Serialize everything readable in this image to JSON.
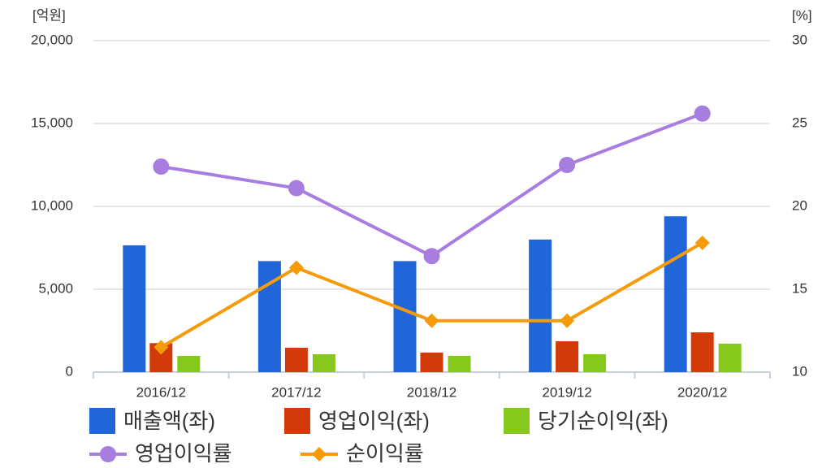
{
  "chart_data": {
    "type": "bar",
    "y_unit": "[억원]",
    "y2_unit": "[%]",
    "categories": [
      "2016/12",
      "2017/12",
      "2018/12",
      "2019/12",
      "2020/12"
    ],
    "ylim": [
      0,
      20000
    ],
    "yticks": [
      0,
      {
        "value": 5000,
        "label": "5,000"
      },
      {
        "value": 10000,
        "label": "10,000"
      },
      {
        "value": 15000,
        "label": "15,000"
      },
      {
        "value": 20000,
        "label": "20,000"
      }
    ],
    "y2lim": [
      10,
      30
    ],
    "y2ticks": [
      10,
      15,
      20,
      25,
      30
    ],
    "grid": true,
    "series": [
      {
        "name": "매출액(좌)",
        "type": "bar",
        "color": "#2166d9",
        "values": [
          7650,
          6700,
          6700,
          8000,
          9400
        ]
      },
      {
        "name": "영업이익(좌)",
        "type": "bar",
        "color": "#d23a0a",
        "values": [
          1750,
          1470,
          1180,
          1860,
          2400
        ]
      },
      {
        "name": "당기순이익(좌)",
        "type": "bar",
        "color": "#86c81c",
        "values": [
          980,
          1080,
          980,
          1080,
          1720
        ]
      },
      {
        "name": "영업이익률",
        "type": "line",
        "axis": "y2",
        "marker": "circle",
        "color": "#a77de0",
        "values": [
          22.4,
          21.1,
          17.0,
          22.5,
          25.6
        ]
      },
      {
        "name": "순이익률",
        "type": "line",
        "axis": "y2",
        "marker": "diamond",
        "color": "#f59b0a",
        "values": [
          11.5,
          16.3,
          13.1,
          13.1,
          17.8
        ]
      }
    ]
  }
}
